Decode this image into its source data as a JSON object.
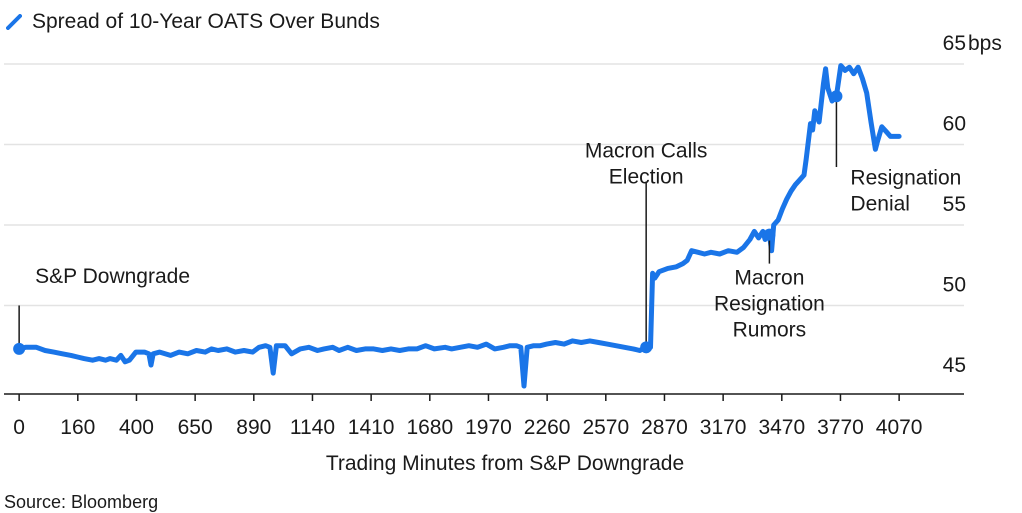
{
  "chart_data": {
    "type": "line",
    "title": "Spread of 10-Year OATS Over Bunds",
    "xlabel": "Trading Minutes from S&P Downgrade",
    "ylabel": "",
    "y_unit": "bps",
    "ylim": [
      44.5,
      65
    ],
    "xlim": [
      -70,
      4370
    ],
    "yticks": [
      45,
      50,
      55,
      60,
      65
    ],
    "xticks": [
      0,
      160,
      400,
      650,
      890,
      1140,
      1410,
      1680,
      1970,
      2260,
      2570,
      2870,
      3170,
      3470,
      3770,
      4070
    ],
    "grid": true,
    "legend_position": "top-left",
    "line_color": "#1a75e8",
    "series": [
      {
        "name": "Spread of 10-Year OATS Over Bunds",
        "points": [
          [
            0,
            47.3
          ],
          [
            30,
            47.4
          ],
          [
            80,
            47.4
          ],
          [
            120,
            47.2
          ],
          [
            160,
            47.1
          ],
          [
            200,
            47.0
          ],
          [
            240,
            46.9
          ],
          [
            270,
            46.8
          ],
          [
            300,
            46.7
          ],
          [
            340,
            46.6
          ],
          [
            370,
            46.7
          ],
          [
            400,
            46.6
          ],
          [
            420,
            46.7
          ],
          [
            450,
            46.6
          ],
          [
            470,
            46.9
          ],
          [
            490,
            46.5
          ],
          [
            510,
            46.6
          ],
          [
            540,
            47.1
          ],
          [
            580,
            47.1
          ],
          [
            600,
            47.0
          ],
          [
            610,
            46.3
          ],
          [
            620,
            47.0
          ],
          [
            650,
            47.1
          ],
          [
            700,
            46.9
          ],
          [
            740,
            47.1
          ],
          [
            780,
            47.0
          ],
          [
            820,
            47.2
          ],
          [
            860,
            47.1
          ],
          [
            890,
            47.3
          ],
          [
            920,
            47.2
          ],
          [
            960,
            47.3
          ],
          [
            1000,
            47.1
          ],
          [
            1040,
            47.2
          ],
          [
            1080,
            47.1
          ],
          [
            1110,
            47.4
          ],
          [
            1140,
            47.5
          ],
          [
            1160,
            47.4
          ],
          [
            1175,
            45.8
          ],
          [
            1190,
            47.5
          ],
          [
            1230,
            47.5
          ],
          [
            1260,
            47.0
          ],
          [
            1300,
            47.3
          ],
          [
            1340,
            47.4
          ],
          [
            1380,
            47.2
          ],
          [
            1410,
            47.3
          ],
          [
            1450,
            47.4
          ],
          [
            1480,
            47.2
          ],
          [
            1520,
            47.4
          ],
          [
            1560,
            47.2
          ],
          [
            1600,
            47.3
          ],
          [
            1640,
            47.3
          ],
          [
            1680,
            47.2
          ],
          [
            1720,
            47.3
          ],
          [
            1760,
            47.2
          ],
          [
            1800,
            47.3
          ],
          [
            1840,
            47.3
          ],
          [
            1880,
            47.5
          ],
          [
            1920,
            47.3
          ],
          [
            1970,
            47.4
          ],
          [
            2000,
            47.3
          ],
          [
            2040,
            47.4
          ],
          [
            2080,
            47.5
          ],
          [
            2120,
            47.4
          ],
          [
            2160,
            47.6
          ],
          [
            2200,
            47.3
          ],
          [
            2240,
            47.4
          ],
          [
            2270,
            47.5
          ],
          [
            2300,
            47.5
          ],
          [
            2320,
            47.4
          ],
          [
            2335,
            45.0
          ],
          [
            2350,
            47.4
          ],
          [
            2380,
            47.5
          ],
          [
            2410,
            47.5
          ],
          [
            2440,
            47.6
          ],
          [
            2480,
            47.7
          ],
          [
            2520,
            47.6
          ],
          [
            2560,
            47.8
          ],
          [
            2600,
            47.7
          ],
          [
            2640,
            47.8
          ],
          [
            2680,
            47.7
          ],
          [
            2720,
            47.6
          ],
          [
            2760,
            47.5
          ],
          [
            2800,
            47.4
          ],
          [
            2840,
            47.3
          ],
          [
            2870,
            47.2
          ],
          [
            2900,
            47.4
          ],
          [
            2920,
            47.4
          ],
          [
            2930,
            52.0
          ],
          [
            2940,
            51.7
          ],
          [
            2960,
            52.1
          ],
          [
            3000,
            52.3
          ],
          [
            3040,
            52.4
          ],
          [
            3070,
            52.6
          ],
          [
            3090,
            52.8
          ],
          [
            3110,
            53.4
          ],
          [
            3140,
            53.3
          ],
          [
            3170,
            53.2
          ],
          [
            3200,
            53.3
          ],
          [
            3240,
            53.2
          ],
          [
            3280,
            53.4
          ],
          [
            3320,
            53.3
          ],
          [
            3350,
            53.6
          ],
          [
            3380,
            54.1
          ],
          [
            3400,
            54.6
          ],
          [
            3420,
            54.2
          ],
          [
            3440,
            54.6
          ],
          [
            3450,
            54.1
          ],
          [
            3470,
            54.4
          ],
          [
            3480,
            53.4
          ],
          [
            3490,
            55.0
          ],
          [
            3510,
            55.3
          ],
          [
            3530,
            56.0
          ],
          [
            3550,
            56.6
          ],
          [
            3570,
            57.1
          ],
          [
            3590,
            57.5
          ],
          [
            3610,
            57.8
          ],
          [
            3630,
            58.1
          ],
          [
            3640,
            59.1
          ],
          [
            3660,
            61.3
          ],
          [
            3670,
            60.9
          ],
          [
            3680,
            62.1
          ],
          [
            3700,
            61.4
          ],
          [
            3720,
            63.8
          ],
          [
            3730,
            64.7
          ],
          [
            3740,
            63.5
          ],
          [
            3760,
            62.7
          ],
          [
            3780,
            63.0
          ],
          [
            3800,
            64.9
          ],
          [
            3820,
            64.6
          ],
          [
            3840,
            64.8
          ],
          [
            3860,
            64.4
          ],
          [
            3880,
            64.8
          ],
          [
            3900,
            64.1
          ],
          [
            3920,
            63.2
          ],
          [
            3940,
            61.4
          ],
          [
            3960,
            59.7
          ],
          [
            3970,
            60.2
          ],
          [
            3990,
            61.1
          ],
          [
            4010,
            60.8
          ],
          [
            4030,
            60.5
          ],
          [
            4050,
            60.5
          ],
          [
            4070,
            60.5
          ]
        ]
      }
    ],
    "markers": [
      {
        "x": 0,
        "y": 47.3
      },
      {
        "x": 2900,
        "y": 47.4
      },
      {
        "x": 3470,
        "y": 54.4
      },
      {
        "x": 3780,
        "y": 63.0
      }
    ],
    "annotations": [
      {
        "lines": [
          "S&P Downgrade"
        ],
        "x": 0,
        "line_from": 47.3,
        "line_to": 50.0,
        "label_y": 51.4,
        "anchor": "start"
      },
      {
        "lines": [
          "Macron Calls",
          "Election"
        ],
        "x": 2900,
        "line_from": 47.4,
        "line_to": 57.7,
        "label_y": 59.2,
        "anchor": "middle"
      },
      {
        "lines": [
          "Macron",
          "Resignation",
          "Rumors"
        ],
        "x": 3470,
        "line_from": 54.4,
        "line_to": 52.6,
        "label_y": 51.3,
        "anchor": "middle"
      },
      {
        "lines": [
          "Resignation",
          "Denial"
        ],
        "x": 3780,
        "line_from": 63.0,
        "line_to": 58.6,
        "label_y": 57.5,
        "anchor": "start"
      }
    ]
  },
  "source": "Source: Bloomberg"
}
